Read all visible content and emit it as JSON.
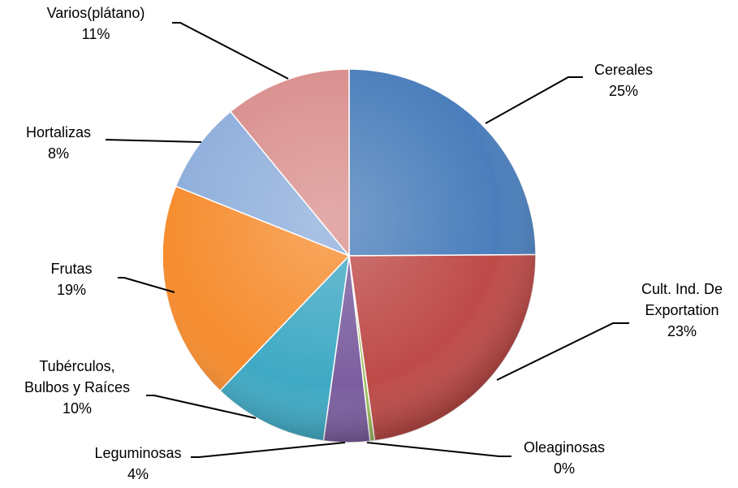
{
  "chart_data": {
    "type": "pie",
    "categories": [
      "Cereales",
      "Cult. Ind. De Exportation",
      "Oleaginosas",
      "Leguminosas",
      "Tubérculos, Bulbos y Raíces",
      "Frutas",
      "Hortalizas",
      "Varios(plátano)"
    ],
    "values": [
      25,
      23,
      0.4,
      4,
      10,
      19,
      8,
      11
    ],
    "value_labels": [
      "25%",
      "23%",
      "0%",
      "4%",
      "10%",
      "19%",
      "8%",
      "11%"
    ],
    "colors": [
      "#4a7ebb",
      "#be4b48",
      "#9bbb59",
      "#7b5e9f",
      "#3fa9c4",
      "#f68c2e",
      "#8eaedb",
      "#d98f8d"
    ]
  }
}
